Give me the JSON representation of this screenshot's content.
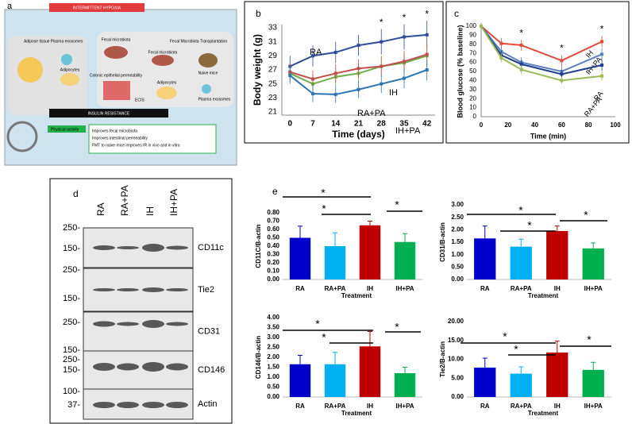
{
  "panel_labels": [
    "a",
    "b",
    "c",
    "d",
    "e"
  ],
  "diagram": {
    "top": "INTERMITTENT HYPOXIA",
    "adipose": "Adipose tissue",
    "exo1": "Plasma exosomes",
    "adipo1": "Adipocytes",
    "fecal1": "Fecal microbiota",
    "colonic": "Colonic epithelial permeability",
    "ecis": "ECIS",
    "fmt": "Fecal Microbiota Transplantation",
    "fecal2": "Fecal microbiota",
    "naive": "Naive mice",
    "exo2": "Plasma exosomes",
    "adipo2": "Adipocytes",
    "ir": "INSULIN RESISTANCE",
    "pa": "Physical activity",
    "notes": [
      "Improves fecal microbiota",
      "Improves intestinal permeability",
      "FMT to naive mice improves IR in vivo and in vitro"
    ]
  },
  "blot": {
    "lanes": [
      "RA",
      "RA+PA",
      "IH",
      "IH+PA"
    ],
    "markers": [
      "250-",
      "150-",
      "250-",
      "150-",
      "250-",
      "150-",
      "250-",
      "150-",
      "100-",
      "37-"
    ],
    "proteins": [
      "CD11c",
      "Tie2",
      "CD31",
      "CD146",
      "Actin"
    ]
  },
  "chart_data": [
    {
      "type": "line",
      "xlabel": "Time (days)",
      "ylabel": "Body weight (g)",
      "x": [
        0,
        7,
        14,
        21,
        28,
        35,
        42
      ],
      "xlim": [
        -2.5,
        44.5
      ],
      "xticks": [
        0,
        7,
        14,
        21,
        28,
        35,
        42
      ],
      "ylim": [
        21,
        33
      ],
      "yticks": [
        21,
        23,
        25,
        27,
        29,
        31,
        33
      ],
      "annotations": [
        "*",
        "*",
        "*"
      ],
      "series": [
        {
          "name": "RA",
          "color": "#2f4b9c",
          "values": [
            27.5,
            29,
            29.5,
            30.5,
            31,
            31.7,
            32
          ],
          "errors": [
            1.5,
            1.5,
            1.5,
            1.5,
            1.8,
            1.8,
            2
          ]
        },
        {
          "name": "IH",
          "color": "#70ad47",
          "values": [
            26.5,
            25,
            26,
            26.5,
            27.5,
            28,
            29
          ],
          "errors": [
            1.2,
            1.3,
            1.3,
            1.4,
            1.5,
            1.5,
            1.6
          ]
        },
        {
          "name": "RA+PA",
          "color": "#c0504d",
          "values": [
            26.7,
            25.7,
            26.5,
            27.2,
            27.5,
            28.2,
            29.2
          ],
          "errors": [
            1.2,
            1.2,
            1.3,
            1.3,
            1.4,
            1.5,
            1.5
          ]
        },
        {
          "name": "IH+PA",
          "color": "#2e75b6",
          "values": [
            26.2,
            23.6,
            23.5,
            24.2,
            25,
            25.8,
            27
          ],
          "errors": [
            1.2,
            1.2,
            1.2,
            1.2,
            1.3,
            1.4,
            1.5
          ]
        }
      ]
    },
    {
      "type": "line",
      "xlabel": "Time (min)",
      "ylabel": "Blood glucose (% baseline)",
      "x": [
        0,
        15,
        30,
        60,
        90
      ],
      "xlim": [
        0,
        100
      ],
      "xticks": [
        0,
        20,
        40,
        60,
        80,
        100
      ],
      "ylim": [
        0,
        100
      ],
      "yticks": [
        0,
        10,
        20,
        30,
        40,
        50,
        60,
        70,
        80,
        90,
        100
      ],
      "annotations": [
        "*",
        "*",
        "*"
      ],
      "series": [
        {
          "name": "IH",
          "color": "#e04a3a",
          "values": [
            100,
            81,
            79,
            62,
            83
          ],
          "errors": [
            0,
            6,
            6,
            6,
            6
          ]
        },
        {
          "name": "IH+PA",
          "color": "#5b7fc0",
          "values": [
            100,
            72,
            60,
            50,
            69
          ],
          "errors": [
            0,
            6,
            6,
            6,
            7
          ]
        },
        {
          "name": "RA",
          "color": "#203e8c",
          "values": [
            100,
            68,
            58,
            47,
            57
          ],
          "errors": [
            0,
            5,
            5,
            5,
            6
          ]
        },
        {
          "name": "RA+PA",
          "color": "#9bbb59",
          "values": [
            100,
            65,
            52,
            40,
            45
          ],
          "errors": [
            0,
            5,
            5,
            4,
            5
          ]
        }
      ]
    },
    {
      "type": "bar",
      "ylabel": "CD11C/B-actin",
      "xlabel": "Treatment",
      "categories": [
        "RA",
        "RA+PA",
        "IH",
        "IH+PA"
      ],
      "colors": [
        "#0000cc",
        "#00b0f0",
        "#c00000",
        "#00b050"
      ],
      "values": [
        0.5,
        0.4,
        0.65,
        0.45
      ],
      "errors": [
        0.14,
        0.16,
        0.05,
        0.1
      ],
      "ylim": [
        0,
        0.8
      ],
      "yticks": [
        {
          "value": 0,
          "label": "0.00"
        },
        {
          "value": 0.1,
          "label": "0.10"
        },
        {
          "value": 0.2,
          "label": "0.20"
        },
        {
          "value": 0.3,
          "label": "0.30"
        },
        {
          "value": 0.4,
          "label": "0.40"
        },
        {
          "value": 0.5,
          "label": "0.50"
        },
        {
          "value": 0.6,
          "label": "0.60"
        },
        {
          "value": 0.7,
          "label": "0.70"
        },
        {
          "value": 0.8,
          "label": "0.80"
        }
      ],
      "annotations": [
        "*",
        "*",
        "*"
      ]
    },
    {
      "type": "bar",
      "ylabel": "CD31/B-actin",
      "xlabel": "Treatment",
      "categories": [
        "RA",
        "RA+PA",
        "IH",
        "IH+PA"
      ],
      "colors": [
        "#0000cc",
        "#00b0f0",
        "#c00000",
        "#00b050"
      ],
      "values": [
        1.65,
        1.32,
        1.95,
        1.25
      ],
      "errors": [
        0.5,
        0.3,
        0.2,
        0.22
      ],
      "ylim": [
        0,
        3
      ],
      "yticks": [
        {
          "value": 0,
          "label": "0.00"
        },
        {
          "value": 0.5,
          "label": "0.50"
        },
        {
          "value": 1,
          "label": "1.00"
        },
        {
          "value": 1.5,
          "label": "1.50"
        },
        {
          "value": 2,
          "label": "2.00"
        },
        {
          "value": 2.5,
          "label": "2.50"
        },
        {
          "value": 3,
          "label": "3.00"
        }
      ],
      "annotations": [
        "*",
        "*",
        "*"
      ]
    },
    {
      "type": "bar",
      "ylabel": "CD146/B-actin",
      "xlabel": "Treatment",
      "categories": [
        "RA",
        "RA+PA",
        "IH",
        "IH+PA"
      ],
      "colors": [
        "#0000cc",
        "#00b0f0",
        "#c00000",
        "#00b050"
      ],
      "values": [
        1.65,
        1.65,
        2.55,
        1.2
      ],
      "errors": [
        0.45,
        0.6,
        0.75,
        0.3
      ],
      "ylim": [
        0,
        4
      ],
      "yticks": [
        {
          "value": 0,
          "label": "0.00"
        },
        {
          "value": 0.5,
          "label": "0.50"
        },
        {
          "value": 1,
          "label": "1.00"
        },
        {
          "value": 1.5,
          "label": "1.50"
        },
        {
          "value": 2,
          "label": "2.00"
        },
        {
          "value": 2.5,
          "label": "2.50"
        },
        {
          "value": 3,
          "label": "3.00"
        },
        {
          "value": 3.5,
          "label": "3.50"
        },
        {
          "value": 4,
          "label": "4.00"
        }
      ],
      "annotations": [
        "*",
        "*",
        "*"
      ]
    },
    {
      "type": "bar",
      "ylabel": "Tie2/B-actin",
      "xlabel": "Treatment",
      "categories": [
        "RA",
        "RA+PA",
        "IH",
        "IH+PA"
      ],
      "colors": [
        "#0000cc",
        "#00b0f0",
        "#c00000",
        "#00b050"
      ],
      "values": [
        7.8,
        6.2,
        11.8,
        7.2
      ],
      "errors": [
        2.5,
        1.8,
        3,
        2
      ],
      "ylim": [
        0,
        20
      ],
      "yticks": [
        {
          "value": 0,
          "label": "0.00"
        },
        {
          "value": 5,
          "label": "5.00"
        },
        {
          "value": 10,
          "label": "10.00"
        },
        {
          "value": 15,
          "label": "15.00"
        },
        {
          "value": 20,
          "label": "20.00"
        }
      ],
      "annotations": [
        "*",
        "*",
        "*"
      ]
    }
  ]
}
